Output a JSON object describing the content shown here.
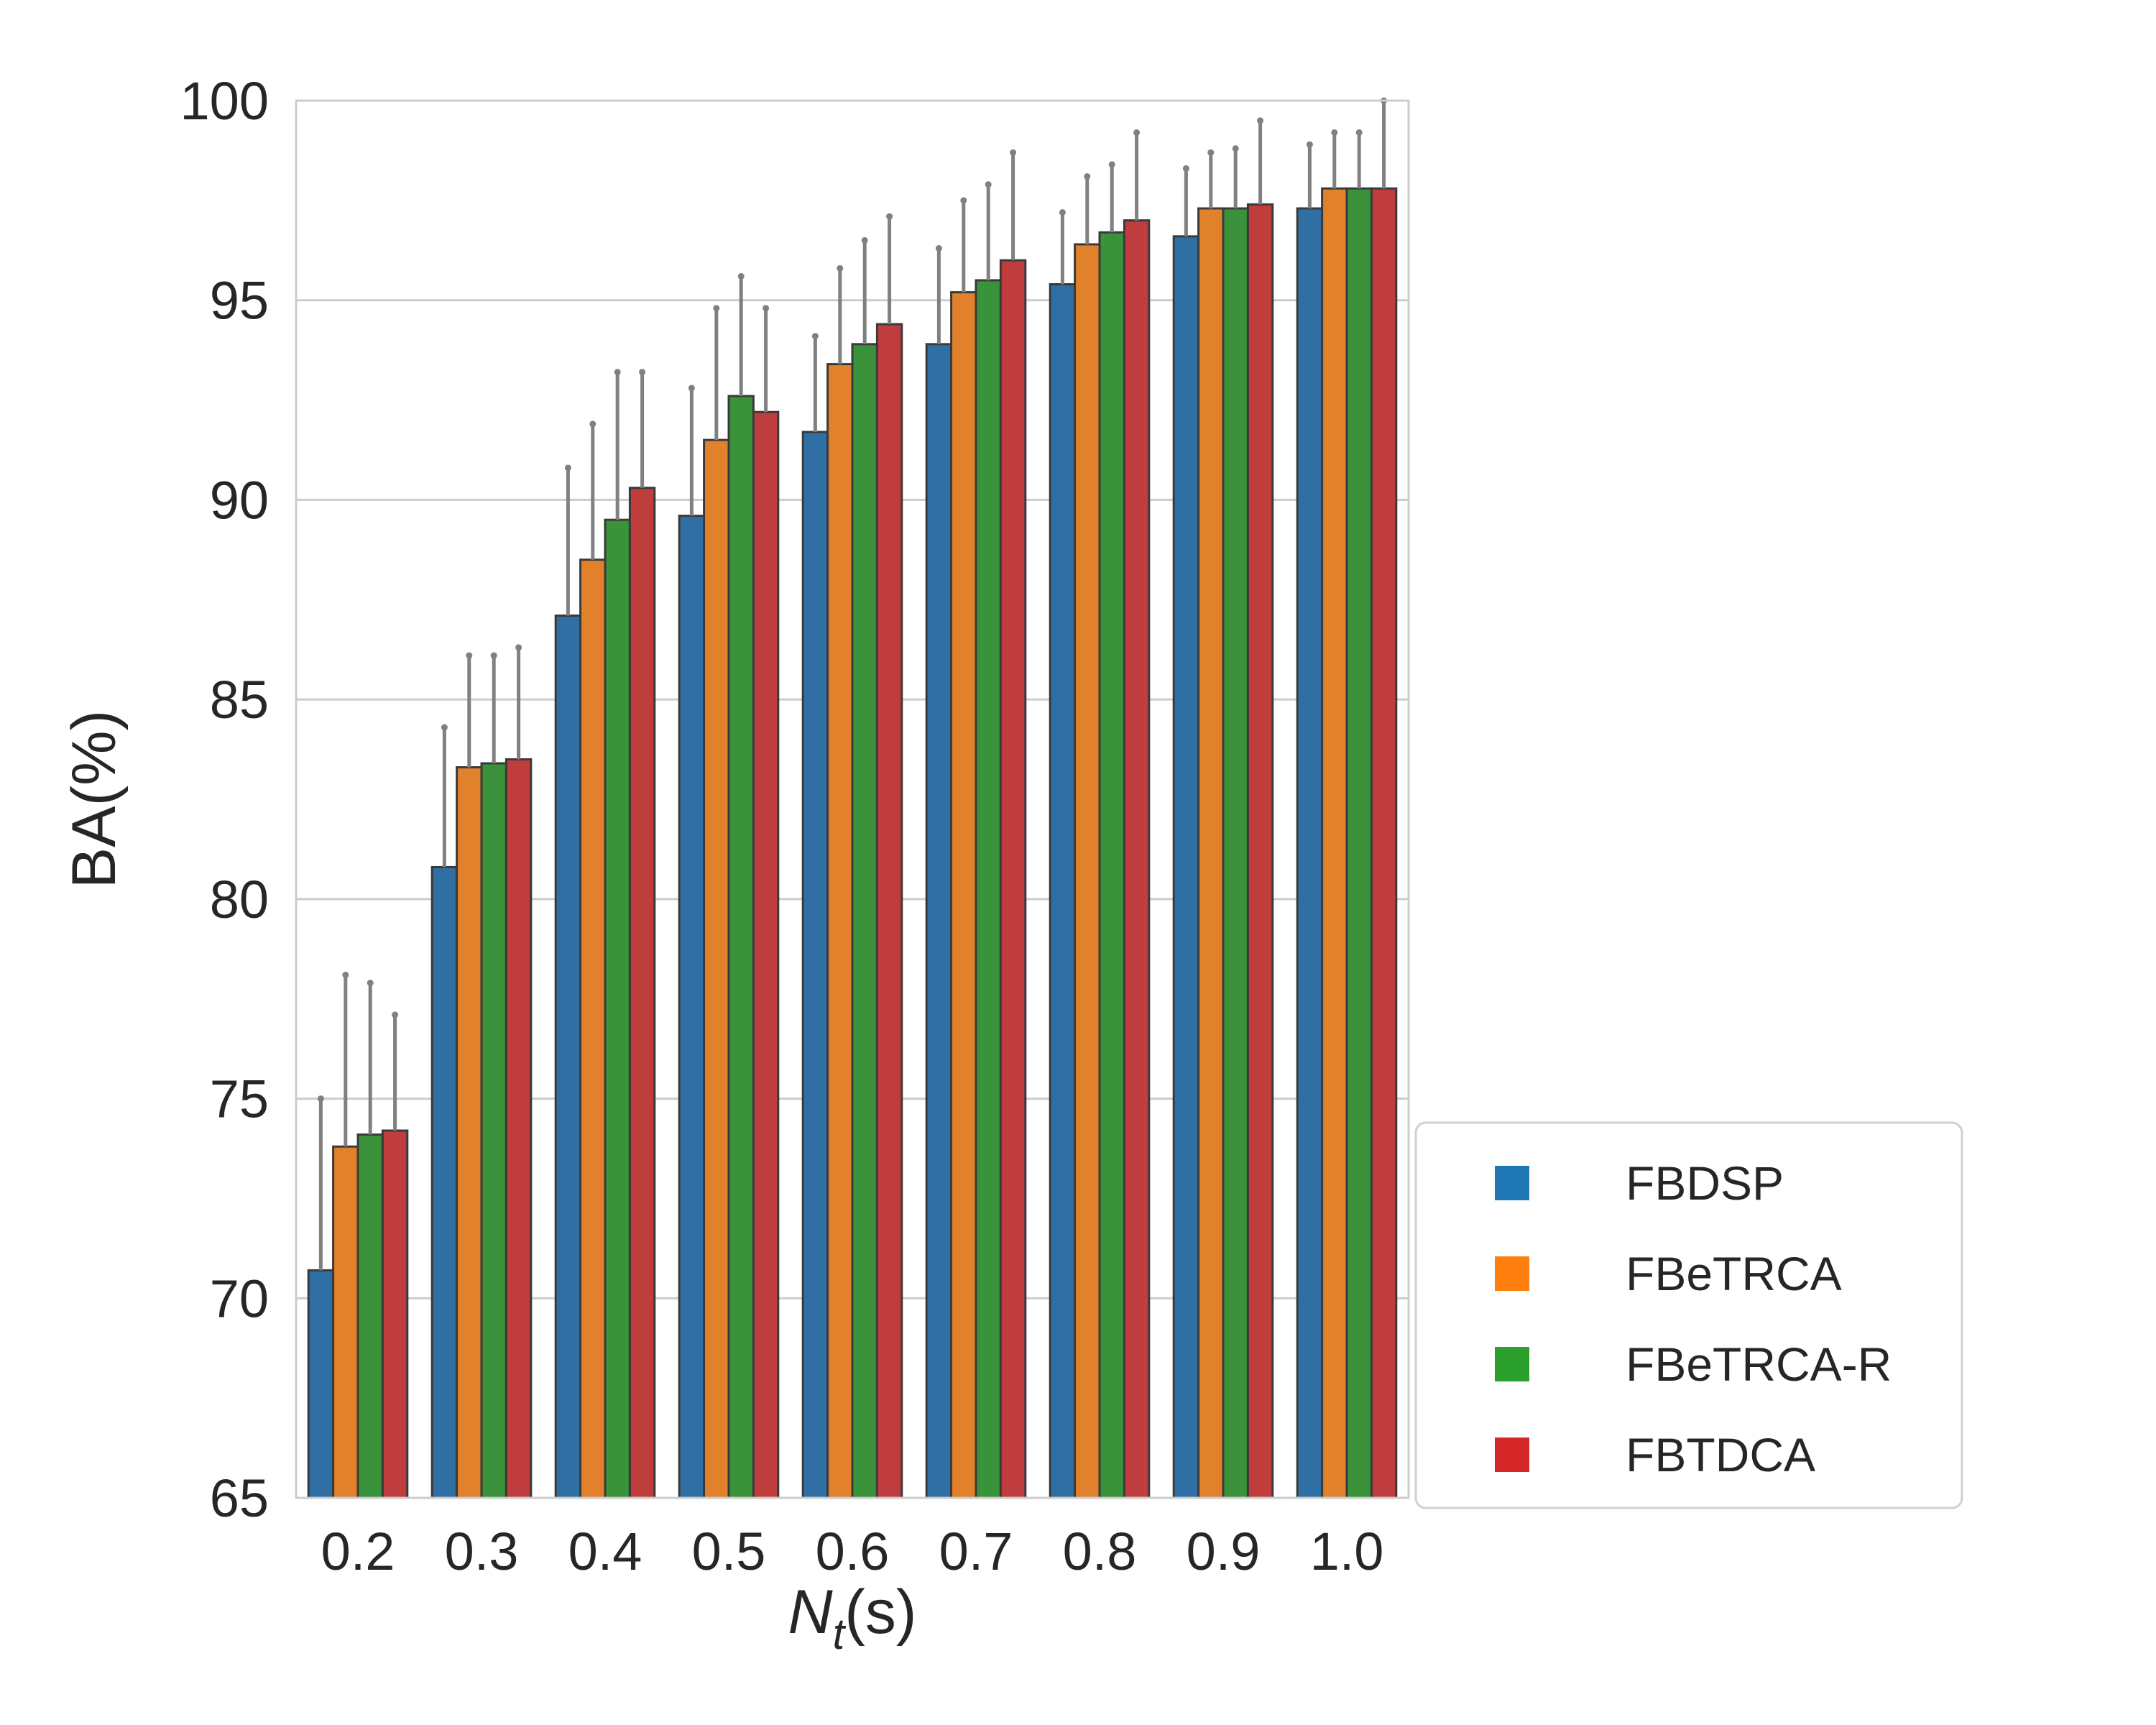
{
  "chart_data": {
    "type": "bar",
    "title": "",
    "xlabel": "N",
    "xlabel_subscript": "t",
    "xlabel_suffix": "(s)",
    "ylabel": "BA(%)",
    "ylim": [
      65,
      100
    ],
    "yticks": [
      "65",
      "70",
      "75",
      "80",
      "85",
      "90",
      "95",
      "100"
    ],
    "grid": "horizontal",
    "legend_placement": "lower-right outside",
    "categories": [
      "0.2",
      "0.3",
      "0.4",
      "0.5",
      "0.6",
      "0.7",
      "0.8",
      "0.9",
      "1.0"
    ],
    "series": [
      {
        "name": "FBDSP",
        "color": "#2f6fa3",
        "legend_color": "#1f77b4",
        "values": [
          70.7,
          80.8,
          87.1,
          89.6,
          91.7,
          93.9,
          95.4,
          96.6,
          97.3
        ],
        "err": [
          75.0,
          84.3,
          90.8,
          92.8,
          94.1,
          96.3,
          97.2,
          98.3,
          98.9
        ]
      },
      {
        "name": "FBeTRCA",
        "color": "#e1812c",
        "legend_color": "#ff7f0e",
        "values": [
          73.8,
          83.3,
          88.5,
          91.5,
          93.4,
          95.2,
          96.4,
          97.3,
          97.8
        ],
        "err": [
          78.1,
          86.1,
          91.9,
          94.8,
          95.8,
          97.5,
          98.1,
          98.7,
          99.2
        ]
      },
      {
        "name": "FBeTRCA-R",
        "color": "#3a923a",
        "legend_color": "#2ca02c",
        "values": [
          74.1,
          83.4,
          89.5,
          92.6,
          93.9,
          95.5,
          96.7,
          97.3,
          97.8
        ],
        "err": [
          77.9,
          86.1,
          93.2,
          95.6,
          96.5,
          97.9,
          98.4,
          98.8,
          99.2
        ]
      },
      {
        "name": "FBTDCA",
        "color": "#c03d3e",
        "legend_color": "#d62728",
        "values": [
          74.2,
          83.5,
          90.3,
          92.2,
          94.4,
          96.0,
          97.0,
          97.4,
          97.8
        ],
        "err": [
          77.1,
          86.3,
          93.2,
          94.8,
          97.1,
          98.7,
          99.2,
          99.5,
          100.0
        ]
      }
    ]
  }
}
